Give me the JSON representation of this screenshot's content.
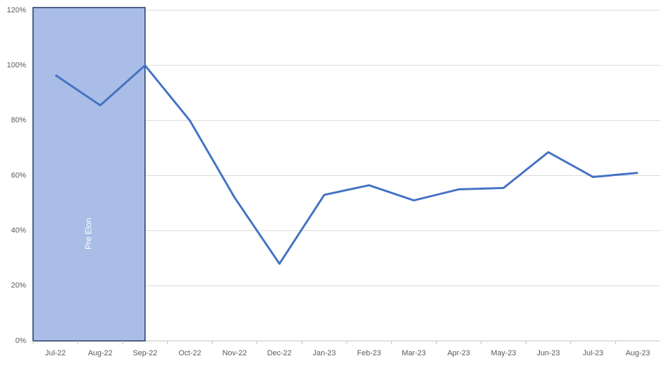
{
  "chart_data": {
    "type": "line",
    "categories": [
      "Jul-22",
      "Aug-22",
      "Sep-22",
      "Oct-22",
      "Nov-22",
      "Dec-22",
      "Jan-23",
      "Feb-23",
      "Mar-23",
      "Apr-23",
      "May-23",
      "Jun-23",
      "Jul-23",
      "Aug-23"
    ],
    "series": [
      {
        "color": "#4472c4",
        "values": [
          96.5,
          85.5,
          100,
          80,
          52,
          28,
          53,
          56.5,
          51,
          55,
          55.5,
          68.5,
          59.5,
          61
        ]
      }
    ],
    "ylim": [
      0,
      120
    ],
    "yticks": [
      {
        "value": 0,
        "label": "0%"
      },
      {
        "value": 20,
        "label": "20%"
      },
      {
        "value": 40,
        "label": "40%"
      },
      {
        "value": 60,
        "label": "60%"
      },
      {
        "value": 80,
        "label": "80%"
      },
      {
        "value": 100,
        "label": "100%"
      },
      {
        "value": 120,
        "label": "120%"
      }
    ],
    "grid": true,
    "shaded_region": {
      "label": "Pre Elon",
      "start": "Jul-22",
      "end": "Sep-22",
      "color": "#a9bde6",
      "border": "#1f3864"
    }
  }
}
